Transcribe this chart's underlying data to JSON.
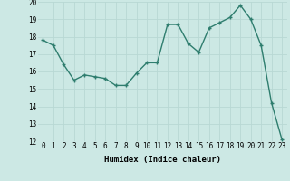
{
  "x": [
    0,
    1,
    2,
    3,
    4,
    5,
    6,
    7,
    8,
    9,
    10,
    11,
    12,
    13,
    14,
    15,
    16,
    17,
    18,
    19,
    20,
    21,
    22,
    23
  ],
  "y": [
    17.8,
    17.5,
    16.4,
    15.5,
    15.8,
    15.7,
    15.6,
    15.2,
    15.2,
    15.9,
    16.5,
    16.5,
    18.7,
    18.7,
    17.6,
    17.1,
    18.5,
    18.8,
    19.1,
    19.8,
    19.0,
    17.5,
    14.2,
    12.1
  ],
  "xlabel": "Humidex (Indice chaleur)",
  "line_color": "#2e7d6e",
  "marker": "+",
  "marker_size": 3.5,
  "bg_color": "#cce8e4",
  "grid_color": "#b8d8d4",
  "ylim": [
    12,
    20
  ],
  "xlim_min": -0.5,
  "xlim_max": 23.5,
  "yticks": [
    12,
    13,
    14,
    15,
    16,
    17,
    18,
    19,
    20
  ],
  "xticks": [
    0,
    1,
    2,
    3,
    4,
    5,
    6,
    7,
    8,
    9,
    10,
    11,
    12,
    13,
    14,
    15,
    16,
    17,
    18,
    19,
    20,
    21,
    22,
    23
  ],
  "tick_label_size": 5.5,
  "xlabel_size": 6.5,
  "linewidth": 1.0,
  "fig_width": 3.2,
  "fig_height": 2.0,
  "dpi": 100
}
